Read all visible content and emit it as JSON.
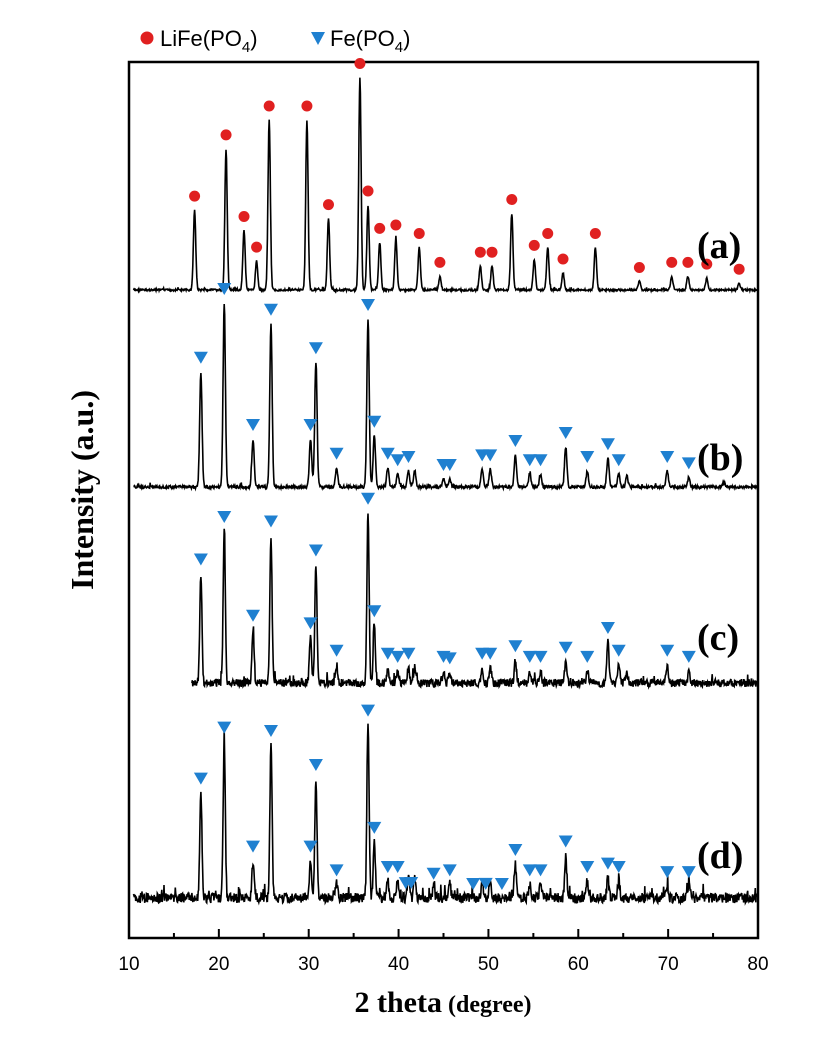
{
  "chart_data": {
    "type": "line",
    "xlabel_main": "2 theta",
    "xlabel_unit": "(degree)",
    "ylabel": "Intensity (a.u.)",
    "xlim": [
      10,
      80
    ],
    "x_ticks": [
      "10",
      "20",
      "30",
      "40",
      "50",
      "60",
      "70",
      "80"
    ],
    "legend": {
      "position": "top-left",
      "entries": [
        {
          "marker": "circle",
          "color": "#e02020",
          "text": "LiFe(PO",
          "sub": "4",
          "close": ")"
        },
        {
          "marker": "triangle-down",
          "color": "#1f80d0",
          "text": "Fe(PO",
          "sub": "4",
          "close": ")"
        }
      ]
    },
    "series": [
      {
        "name": "(a)",
        "color": "#000000",
        "marker": "circle",
        "marker_color": "#e02020",
        "peaks": [
          [
            17.3,
            0.47
          ],
          [
            20.8,
            0.83
          ],
          [
            22.8,
            0.35
          ],
          [
            24.2,
            0.17
          ],
          [
            25.6,
            1.0
          ],
          [
            29.8,
            1.0
          ],
          [
            32.2,
            0.42
          ],
          [
            35.7,
            1.25
          ],
          [
            36.6,
            0.5
          ],
          [
            37.9,
            0.28
          ],
          [
            39.7,
            0.3
          ],
          [
            42.3,
            0.25
          ],
          [
            44.6,
            0.08
          ],
          [
            49.1,
            0.14
          ],
          [
            50.4,
            0.14
          ],
          [
            52.6,
            0.45
          ],
          [
            55.1,
            0.18
          ],
          [
            56.6,
            0.25
          ],
          [
            58.3,
            0.1
          ],
          [
            61.9,
            0.25
          ],
          [
            66.8,
            0.05
          ],
          [
            70.4,
            0.08
          ],
          [
            72.2,
            0.08
          ],
          [
            74.3,
            0.07
          ],
          [
            77.9,
            0.04
          ]
        ],
        "markers_x": [
          17.3,
          20.8,
          22.8,
          24.2,
          25.6,
          29.8,
          32.2,
          35.7,
          36.6,
          37.9,
          39.7,
          42.3,
          44.6,
          49.1,
          50.4,
          52.6,
          55.1,
          56.6,
          58.3,
          61.9,
          66.8,
          70.4,
          72.2,
          74.3,
          77.9
        ],
        "label": "(a)"
      },
      {
        "name": "(b)",
        "color": "#000000",
        "marker": "triangle-down",
        "marker_color": "#1f80d0",
        "peaks": [
          [
            18.0,
            0.72
          ],
          [
            20.6,
            1.15
          ],
          [
            23.8,
            0.3
          ],
          [
            25.8,
            1.02
          ],
          [
            30.2,
            0.3
          ],
          [
            30.8,
            0.78
          ],
          [
            33.1,
            0.12
          ],
          [
            36.6,
            1.05
          ],
          [
            37.3,
            0.32
          ],
          [
            38.8,
            0.12
          ],
          [
            39.9,
            0.08
          ],
          [
            41.1,
            0.1
          ],
          [
            41.8,
            0.1
          ],
          [
            45.0,
            0.05
          ],
          [
            45.7,
            0.05
          ],
          [
            49.3,
            0.11
          ],
          [
            50.2,
            0.11
          ],
          [
            53.0,
            0.2
          ],
          [
            54.6,
            0.08
          ],
          [
            55.8,
            0.08
          ],
          [
            58.6,
            0.25
          ],
          [
            61.0,
            0.1
          ],
          [
            63.3,
            0.18
          ],
          [
            64.5,
            0.08
          ],
          [
            65.4,
            0.07
          ],
          [
            69.9,
            0.1
          ],
          [
            72.3,
            0.06
          ],
          [
            76.2,
            0.03
          ]
        ],
        "markers_x": [
          18.0,
          20.6,
          23.8,
          25.8,
          30.2,
          30.8,
          33.1,
          36.6,
          37.3,
          38.8,
          39.9,
          41.1,
          45.0,
          45.7,
          49.3,
          50.2,
          53.0,
          54.6,
          55.8,
          58.6,
          61.0,
          63.3,
          64.5,
          69.9,
          72.3
        ],
        "label": "(b)"
      },
      {
        "name": "(c)",
        "color": "#000000",
        "marker": "triangle-down",
        "marker_color": "#1f80d0",
        "peaks": [
          [
            18.0,
            0.72
          ],
          [
            20.6,
            1.0
          ],
          [
            23.8,
            0.35
          ],
          [
            25.8,
            0.97
          ],
          [
            30.2,
            0.3
          ],
          [
            30.8,
            0.78
          ],
          [
            33.1,
            0.12
          ],
          [
            36.6,
            1.12
          ],
          [
            37.3,
            0.38
          ],
          [
            38.8,
            0.1
          ],
          [
            39.9,
            0.08
          ],
          [
            41.1,
            0.1
          ],
          [
            41.8,
            0.1
          ],
          [
            45.0,
            0.08
          ],
          [
            45.7,
            0.07
          ],
          [
            49.3,
            0.1
          ],
          [
            50.2,
            0.1
          ],
          [
            53.0,
            0.15
          ],
          [
            54.6,
            0.08
          ],
          [
            55.8,
            0.08
          ],
          [
            58.6,
            0.14
          ],
          [
            61.0,
            0.08
          ],
          [
            63.3,
            0.27
          ],
          [
            64.5,
            0.12
          ],
          [
            65.4,
            0.08
          ],
          [
            69.9,
            0.12
          ],
          [
            72.3,
            0.08
          ]
        ],
        "markers_x": [
          18.0,
          20.6,
          23.8,
          25.8,
          30.2,
          30.8,
          33.1,
          36.6,
          37.3,
          38.8,
          39.9,
          41.1,
          45.0,
          45.7,
          49.3,
          50.2,
          53.0,
          54.6,
          55.8,
          58.6,
          61.0,
          63.3,
          64.5,
          69.9,
          72.3
        ],
        "label": "(c)"
      },
      {
        "name": "(d)",
        "color": "#000000",
        "marker": "triangle-down",
        "marker_color": "#1f80d0",
        "peaks": [
          [
            18.0,
            0.62
          ],
          [
            20.6,
            0.92
          ],
          [
            23.8,
            0.22
          ],
          [
            25.8,
            0.9
          ],
          [
            30.2,
            0.22
          ],
          [
            30.8,
            0.7
          ],
          [
            33.1,
            0.08
          ],
          [
            36.6,
            1.02
          ],
          [
            37.3,
            0.33
          ],
          [
            38.8,
            0.1
          ],
          [
            39.9,
            0.1
          ],
          [
            41.1,
            0.12
          ],
          [
            41.8,
            0.12
          ],
          [
            43.9,
            0.06
          ],
          [
            45.7,
            0.08
          ],
          [
            49.3,
            0.1
          ],
          [
            50.2,
            0.1
          ],
          [
            53.0,
            0.2
          ],
          [
            54.6,
            0.08
          ],
          [
            55.8,
            0.08
          ],
          [
            58.6,
            0.25
          ],
          [
            61.0,
            0.1
          ],
          [
            63.3,
            0.12
          ],
          [
            64.5,
            0.1
          ],
          [
            69.9,
            0.07
          ],
          [
            72.3,
            0.07
          ]
        ],
        "markers_x": [
          18.0,
          20.6,
          23.8,
          25.8,
          30.2,
          30.8,
          33.1,
          36.6,
          37.3,
          38.8,
          39.9,
          40.8,
          41.4,
          43.9,
          45.7,
          48.3,
          49.7,
          51.5,
          53.0,
          54.6,
          55.8,
          58.6,
          61.0,
          63.3,
          64.5,
          69.9,
          72.3
        ],
        "label": "(d)"
      }
    ]
  }
}
